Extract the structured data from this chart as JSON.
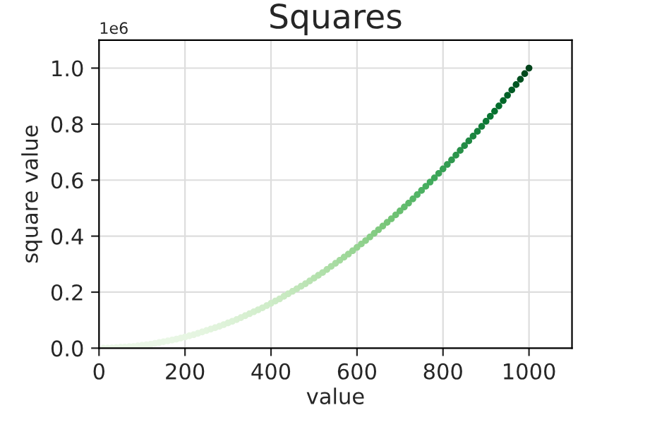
{
  "chart_data": {
    "type": "scatter",
    "title": "Squares",
    "xlabel": "value",
    "ylabel": "square value",
    "annotations": [
      "1e6"
    ],
    "x": [
      10,
      20,
      30,
      40,
      50,
      60,
      70,
      80,
      90,
      100,
      110,
      120,
      130,
      140,
      150,
      160,
      170,
      180,
      190,
      200,
      210,
      220,
      230,
      240,
      250,
      260,
      270,
      280,
      290,
      300,
      310,
      320,
      330,
      340,
      350,
      360,
      370,
      380,
      390,
      400,
      410,
      420,
      430,
      440,
      450,
      460,
      470,
      480,
      490,
      500,
      510,
      520,
      530,
      540,
      550,
      560,
      570,
      580,
      590,
      600,
      610,
      620,
      630,
      640,
      650,
      660,
      670,
      680,
      690,
      700,
      710,
      720,
      730,
      740,
      750,
      760,
      770,
      780,
      790,
      800,
      810,
      820,
      830,
      840,
      850,
      860,
      870,
      880,
      890,
      900,
      910,
      920,
      930,
      940,
      950,
      960,
      970,
      980,
      990,
      1000
    ],
    "values": [
      0,
      0,
      0.001,
      0.002,
      0.003,
      0.004,
      0.005,
      0.006,
      0.008,
      0.01,
      0.012,
      0.014,
      0.017,
      0.02,
      0.023,
      0.026,
      0.029,
      0.032,
      0.036,
      0.04,
      0.044,
      0.048,
      0.053,
      0.058,
      0.063,
      0.068,
      0.073,
      0.078,
      0.084,
      0.09,
      0.096,
      0.102,
      0.109,
      0.116,
      0.123,
      0.13,
      0.137,
      0.144,
      0.152,
      0.16,
      0.168,
      0.176,
      0.185,
      0.194,
      0.203,
      0.212,
      0.221,
      0.23,
      0.24,
      0.25,
      0.26,
      0.27,
      0.281,
      0.292,
      0.303,
      0.314,
      0.325,
      0.336,
      0.348,
      0.36,
      0.372,
      0.384,
      0.397,
      0.41,
      0.423,
      0.436,
      0.449,
      0.462,
      0.476,
      0.49,
      0.504,
      0.518,
      0.533,
      0.548,
      0.563,
      0.578,
      0.593,
      0.608,
      0.624,
      0.64,
      0.656,
      0.672,
      0.689,
      0.706,
      0.723,
      0.74,
      0.757,
      0.774,
      0.792,
      0.81,
      0.828,
      0.846,
      0.865,
      0.884,
      0.903,
      0.922,
      0.941,
      0.96,
      0.98,
      1.0
    ],
    "xlim": [
      0,
      1100
    ],
    "xticks": [
      0,
      200,
      400,
      600,
      800,
      1000
    ],
    "ylim": [
      0,
      1.1
    ],
    "yticks": [
      {
        "value": 0,
        "label": "0.0"
      },
      0.2,
      0.4,
      0.6,
      0.8,
      {
        "value": 1,
        "label": "1.0"
      }
    ],
    "grid": true,
    "marker": "circle"
  }
}
